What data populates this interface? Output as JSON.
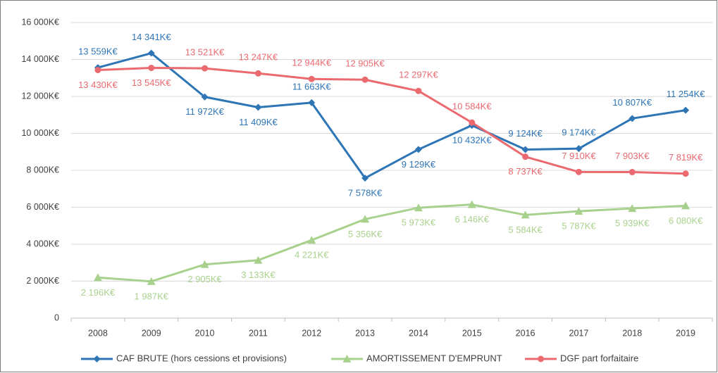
{
  "chart_data": {
    "type": "line",
    "categories": [
      "2008",
      "2009",
      "2010",
      "2011",
      "2012",
      "2013",
      "2014",
      "2015",
      "2016",
      "2017",
      "2018",
      "2019"
    ],
    "series": [
      {
        "name": "CAF BRUTE (hors cessions et provisions)",
        "color": "#2e75b6",
        "marker": "diamond",
        "values": [
          13559,
          14341,
          11972,
          11409,
          11663,
          7578,
          9129,
          10432,
          9124,
          9174,
          10807,
          11254
        ],
        "value_labels": [
          "13 559K€",
          "14 341K€",
          "11 972K€",
          "11 409K€",
          "11 663K€",
          "7 578K€",
          "9 129K€",
          "10 432K€",
          "9 124K€",
          "9 174K€",
          "10 807K€",
          "11 254K€"
        ]
      },
      {
        "name": "AMORTISSEMENT D'EMPRUNT",
        "color": "#a9d18e",
        "marker": "triangle",
        "values": [
          2196,
          1987,
          2905,
          3133,
          4221,
          5356,
          5973,
          6146,
          5584,
          5787,
          5939,
          6080
        ],
        "value_labels": [
          "2 196K€",
          "1 987K€",
          "2 905K€",
          "3 133K€",
          "4 221K€",
          "5 356K€",
          "5 973K€",
          "6 146K€",
          "5 584K€",
          "5 787K€",
          "5 939K€",
          "6 080K€"
        ]
      },
      {
        "name": "DGF part forfaitaire",
        "color": "#ea6a6f",
        "marker": "circle",
        "values": [
          13430,
          13545,
          13521,
          13247,
          12944,
          12905,
          12297,
          10584,
          8737,
          7910,
          7903,
          7819
        ],
        "value_labels": [
          "13 430K€",
          "13 545K€",
          "13 521K€",
          "13 247K€",
          "12 944K€",
          "12 905K€",
          "12 297K€",
          "10 584K€",
          "8 737K€",
          "7 910K€",
          "7 903K€",
          "7 819K€"
        ]
      }
    ],
    "ylim": [
      0,
      16000
    ],
    "yticks": [
      0,
      {
        "value": 2000,
        "label": "2 000K€"
      },
      {
        "value": 4000,
        "label": "4 000K€"
      },
      {
        "value": 6000,
        "label": "6 000K€"
      },
      {
        "value": 8000,
        "label": "8 000K€"
      },
      {
        "value": 10000,
        "label": "10 000K€"
      },
      {
        "value": 12000,
        "label": "12 000K€"
      },
      {
        "value": 14000,
        "label": "14 000K€"
      },
      {
        "value": 16000,
        "label": "16 000K€"
      }
    ],
    "grid": true
  }
}
